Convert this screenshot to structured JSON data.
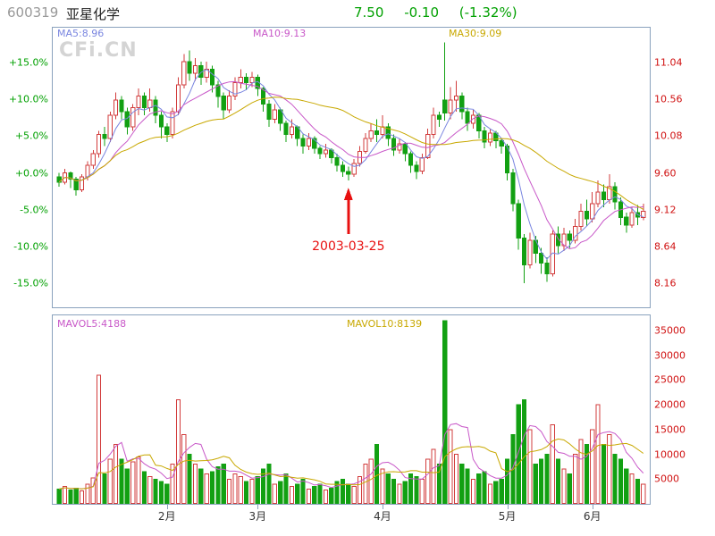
{
  "header": {
    "stock_code": "600319",
    "stock_name": "亚星化学",
    "price": "7.50",
    "change": "-0.10",
    "change_pct": "(-1.32%)",
    "code_color": "#999999",
    "name_color": "#222222",
    "quote_color": "#00a000"
  },
  "watermark": "CFi.CN",
  "chart_data": {
    "type": "candlestick",
    "title": "600319 亚星化学 daily K-line with volume, Jan-Jun 2003",
    "base_price": 9.6,
    "price_range": [
      8.16,
      11.04
    ],
    "volume_range": [
      0,
      35000
    ],
    "x_description": "trading days Jan-Jun 2003",
    "overlays": {
      "ma5_label": "MA5:8.96",
      "ma10_label": "MA10:9.13",
      "ma30_label": "MA30:9.09",
      "mavol5_label": "MAVOL5:4188",
      "mavol10_label": "MAVOL10:8139"
    },
    "percent_axis": [
      {
        "label": "+15.0%",
        "value": 11.04
      },
      {
        "label": "+10.0%",
        "value": 10.56
      },
      {
        "label": "+5.0%",
        "value": 10.08
      },
      {
        "label": "+0.0%",
        "value": 9.6
      },
      {
        "label": "-5.0%",
        "value": 9.12
      },
      {
        "label": "-10.0%",
        "value": 8.64
      },
      {
        "label": "-15.0%",
        "value": 8.16
      }
    ],
    "price_axis": [
      {
        "label": "11.04",
        "value": 11.04
      },
      {
        "label": "10.56",
        "value": 10.56
      },
      {
        "label": "10.08",
        "value": 10.08
      },
      {
        "label": "9.60",
        "value": 9.6
      },
      {
        "label": "9.12",
        "value": 9.12
      },
      {
        "label": "8.64",
        "value": 8.64
      },
      {
        "label": "8.16",
        "value": 8.16
      }
    ],
    "volume_axis": [
      {
        "label": "35000",
        "value": 35000
      },
      {
        "label": "30000",
        "value": 30000
      },
      {
        "label": "25000",
        "value": 25000
      },
      {
        "label": "20000",
        "value": 20000
      },
      {
        "label": "15000",
        "value": 15000
      },
      {
        "label": "10000",
        "value": 10000
      },
      {
        "label": "5000",
        "value": 5000
      }
    ],
    "month_ticks": [
      {
        "label": "2月",
        "index": 19
      },
      {
        "label": "3月",
        "index": 35
      },
      {
        "label": "4月",
        "index": 57
      },
      {
        "label": "5月",
        "index": 79
      },
      {
        "label": "6月",
        "index": 94
      }
    ],
    "annotation": {
      "text": "2003-03-25",
      "index": 51,
      "price": 9.5,
      "color": "#e81010"
    },
    "colors": {
      "up": "#d23c3c",
      "down": "#12a012",
      "ma5": "#7a86e0",
      "ma10": "#c857c8",
      "ma30": "#c8a800",
      "mavol5": "#c857c8",
      "mavol10": "#c8a800",
      "percent_axis": "#00a000",
      "price_axis": "#d01010",
      "volume_axis": "#d01010",
      "frame": "#8aa2bd"
    },
    "columns": [
      "open",
      "close",
      "low",
      "high",
      "volume"
    ],
    "ohlcv": [
      [
        9.55,
        9.48,
        9.42,
        9.6,
        3000
      ],
      [
        9.48,
        9.6,
        9.45,
        9.65,
        3500
      ],
      [
        9.6,
        9.52,
        9.4,
        9.62,
        2800
      ],
      [
        9.52,
        9.38,
        9.3,
        9.55,
        3200
      ],
      [
        9.38,
        9.55,
        9.35,
        9.58,
        2600
      ],
      [
        9.55,
        9.7,
        9.5,
        9.75,
        4000
      ],
      [
        9.7,
        9.85,
        9.65,
        9.9,
        5200
      ],
      [
        9.85,
        10.1,
        9.8,
        10.15,
        26000
      ],
      [
        10.1,
        10.05,
        9.95,
        10.2,
        6000
      ],
      [
        10.05,
        10.35,
        10.0,
        10.4,
        9000
      ],
      [
        10.35,
        10.55,
        10.3,
        10.65,
        12000
      ],
      [
        10.55,
        10.4,
        10.3,
        10.6,
        9000
      ],
      [
        10.4,
        10.2,
        10.1,
        10.45,
        7000
      ],
      [
        10.2,
        10.45,
        10.15,
        10.5,
        8500
      ],
      [
        10.45,
        10.6,
        10.35,
        10.7,
        9500
      ],
      [
        10.6,
        10.45,
        10.35,
        10.65,
        6500
      ],
      [
        10.45,
        10.55,
        10.4,
        10.7,
        5500
      ],
      [
        10.55,
        10.35,
        10.25,
        10.6,
        5000
      ],
      [
        10.35,
        10.2,
        10.05,
        10.4,
        4500
      ],
      [
        10.2,
        10.1,
        10.0,
        10.25,
        4000
      ],
      [
        10.1,
        10.4,
        10.05,
        10.45,
        8000
      ],
      [
        10.4,
        10.75,
        10.35,
        10.85,
        21000
      ],
      [
        10.75,
        11.05,
        10.7,
        11.15,
        14000
      ],
      [
        11.05,
        10.9,
        10.8,
        11.2,
        10000
      ],
      [
        10.9,
        11.0,
        10.8,
        11.1,
        8000
      ],
      [
        11.0,
        10.85,
        10.75,
        11.05,
        7000
      ],
      [
        10.85,
        10.95,
        10.78,
        11.05,
        6000
      ],
      [
        10.95,
        10.75,
        10.65,
        11.0,
        6500
      ],
      [
        10.75,
        10.6,
        10.45,
        10.8,
        7500
      ],
      [
        10.6,
        10.42,
        10.3,
        10.65,
        8000
      ],
      [
        10.42,
        10.6,
        10.38,
        10.68,
        5000
      ],
      [
        10.6,
        10.78,
        10.55,
        10.85,
        6000
      ],
      [
        10.78,
        10.85,
        10.7,
        10.95,
        5500
      ],
      [
        10.85,
        10.78,
        10.68,
        10.9,
        4500
      ],
      [
        10.78,
        10.85,
        10.72,
        10.92,
        5000
      ],
      [
        10.85,
        10.7,
        10.6,
        10.88,
        5500
      ],
      [
        10.7,
        10.5,
        10.4,
        10.72,
        7000
      ],
      [
        10.5,
        10.3,
        10.2,
        10.55,
        8000
      ],
      [
        10.3,
        10.42,
        10.25,
        10.5,
        4000
      ],
      [
        10.42,
        10.25,
        10.15,
        10.45,
        4500
      ],
      [
        10.25,
        10.1,
        10.0,
        10.28,
        6000
      ],
      [
        10.1,
        10.2,
        10.05,
        10.3,
        3500
      ],
      [
        10.2,
        10.05,
        9.95,
        10.22,
        4000
      ],
      [
        10.05,
        9.95,
        9.85,
        10.1,
        5000
      ],
      [
        9.95,
        10.05,
        9.9,
        10.12,
        3000
      ],
      [
        10.05,
        9.92,
        9.85,
        10.08,
        3500
      ],
      [
        9.92,
        9.85,
        9.78,
        9.95,
        4000
      ],
      [
        9.85,
        9.9,
        9.8,
        9.98,
        2800
      ],
      [
        9.9,
        9.8,
        9.72,
        9.92,
        3200
      ],
      [
        9.8,
        9.7,
        9.62,
        9.85,
        4500
      ],
      [
        9.7,
        9.62,
        9.55,
        9.75,
        5000
      ],
      [
        9.62,
        9.58,
        9.5,
        9.68,
        4000
      ],
      [
        9.58,
        9.72,
        9.55,
        9.78,
        3500
      ],
      [
        9.72,
        9.88,
        9.68,
        9.95,
        5500
      ],
      [
        9.88,
        10.05,
        9.85,
        10.12,
        8000
      ],
      [
        10.05,
        10.15,
        10.0,
        10.25,
        9000
      ],
      [
        10.15,
        10.1,
        10.0,
        10.3,
        12000
      ],
      [
        10.1,
        10.2,
        10.05,
        10.35,
        7000
      ],
      [
        10.2,
        10.05,
        9.95,
        10.25,
        6000
      ],
      [
        10.05,
        9.9,
        9.82,
        10.1,
        5000
      ],
      [
        9.9,
        9.98,
        9.85,
        10.05,
        4000
      ],
      [
        9.98,
        9.85,
        9.75,
        10.0,
        4500
      ],
      [
        9.85,
        9.7,
        9.6,
        9.88,
        6000
      ],
      [
        9.7,
        9.62,
        9.52,
        9.75,
        5500
      ],
      [
        9.62,
        9.8,
        9.58,
        9.85,
        5000
      ],
      [
        9.8,
        10.1,
        9.78,
        10.18,
        9000
      ],
      [
        10.1,
        10.35,
        10.05,
        10.45,
        11000
      ],
      [
        10.35,
        10.3,
        10.2,
        10.4,
        8000
      ],
      [
        10.55,
        10.38,
        10.28,
        11.3,
        37000
      ],
      [
        10.38,
        10.55,
        10.3,
        10.72,
        15000
      ],
      [
        10.55,
        10.6,
        10.4,
        10.8,
        10000
      ],
      [
        10.6,
        10.4,
        10.3,
        10.65,
        8000
      ],
      [
        10.4,
        10.25,
        10.15,
        10.45,
        7000
      ],
      [
        10.25,
        10.35,
        10.18,
        10.42,
        5000
      ],
      [
        10.35,
        10.15,
        10.05,
        10.38,
        6000
      ],
      [
        10.15,
        10.0,
        9.92,
        10.2,
        6500
      ],
      [
        10.0,
        10.12,
        9.95,
        10.18,
        4000
      ],
      [
        10.12,
        10.02,
        9.92,
        10.15,
        4500
      ],
      [
        10.02,
        9.95,
        9.85,
        10.05,
        5000
      ],
      [
        9.95,
        9.6,
        9.5,
        9.98,
        9000
      ],
      [
        9.6,
        9.2,
        9.1,
        9.65,
        14000
      ],
      [
        9.2,
        8.75,
        8.6,
        9.25,
        20000
      ],
      [
        8.75,
        8.4,
        8.16,
        8.8,
        21000
      ],
      [
        8.4,
        8.72,
        8.35,
        8.82,
        15000
      ],
      [
        8.72,
        8.55,
        8.42,
        8.78,
        8000
      ],
      [
        8.55,
        8.42,
        8.28,
        8.62,
        9000
      ],
      [
        8.42,
        8.28,
        8.18,
        8.5,
        10000
      ],
      [
        8.28,
        8.8,
        8.25,
        8.85,
        16000
      ],
      [
        8.8,
        8.65,
        8.55,
        8.9,
        9000
      ],
      [
        8.65,
        8.8,
        8.58,
        8.88,
        7000
      ],
      [
        8.8,
        8.72,
        8.62,
        8.85,
        6000
      ],
      [
        8.72,
        8.9,
        8.68,
        9.0,
        10000
      ],
      [
        8.9,
        9.1,
        8.85,
        9.2,
        13000
      ],
      [
        9.1,
        9.0,
        8.9,
        9.25,
        12000
      ],
      [
        9.0,
        9.2,
        8.95,
        9.35,
        15000
      ],
      [
        9.2,
        9.35,
        9.15,
        9.5,
        20000
      ],
      [
        9.35,
        9.25,
        9.15,
        9.45,
        12000
      ],
      [
        9.25,
        9.42,
        9.2,
        9.58,
        14000
      ],
      [
        9.42,
        9.22,
        9.12,
        9.48,
        10000
      ],
      [
        9.22,
        9.02,
        8.92,
        9.28,
        9000
      ],
      [
        9.02,
        8.92,
        8.82,
        9.08,
        7000
      ],
      [
        8.92,
        9.08,
        8.88,
        9.15,
        6000
      ],
      [
        9.08,
        9.02,
        8.92,
        9.18,
        5000
      ],
      [
        9.02,
        9.1,
        8.98,
        9.2,
        4000
      ]
    ]
  }
}
